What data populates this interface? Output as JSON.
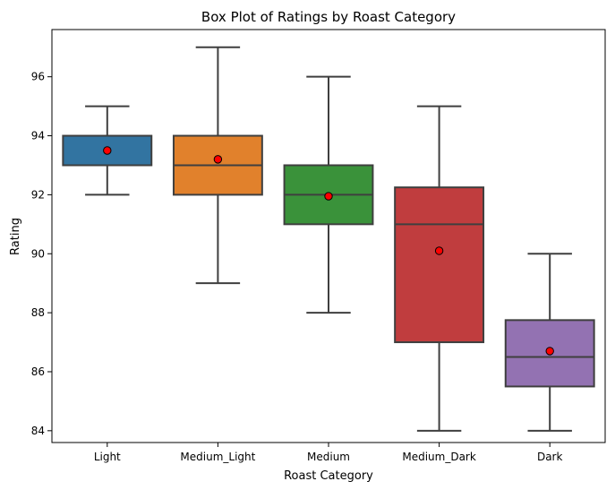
{
  "chart_data": {
    "type": "box",
    "title": "Box Plot of Ratings by Roast Category",
    "xlabel": "Roast Category",
    "ylabel": "Rating",
    "ylim": [
      83.6,
      97.6
    ],
    "yticks": [
      84,
      86,
      88,
      90,
      92,
      94,
      96
    ],
    "grid": false,
    "mean_marker_color": "#ff0000",
    "box_edge_color": "#3f3f3f",
    "categories": [
      "Light",
      "Medium_Light",
      "Medium",
      "Medium_Dark",
      "Dark"
    ],
    "boxes": [
      {
        "category": "Light",
        "color": "#3274a1",
        "whisker_low": 92,
        "q1": 93,
        "median": 93,
        "q3": 94,
        "whisker_high": 95,
        "mean": 93.5
      },
      {
        "category": "Medium_Light",
        "color": "#e1812c",
        "whisker_low": 89,
        "q1": 92,
        "median": 93,
        "q3": 94,
        "whisker_high": 97,
        "mean": 93.2
      },
      {
        "category": "Medium",
        "color": "#3a923a",
        "whisker_low": 88,
        "q1": 91,
        "median": 92,
        "q3": 93,
        "whisker_high": 96,
        "mean": 91.95
      },
      {
        "category": "Medium_Dark",
        "color": "#c03d3e",
        "whisker_low": 84,
        "q1": 87,
        "median": 91,
        "q3": 92.25,
        "whisker_high": 95,
        "mean": 90.1
      },
      {
        "category": "Dark",
        "color": "#9372b2",
        "whisker_low": 84,
        "q1": 85.5,
        "median": 86.5,
        "q3": 87.75,
        "whisker_high": 90,
        "mean": 86.7
      }
    ]
  }
}
